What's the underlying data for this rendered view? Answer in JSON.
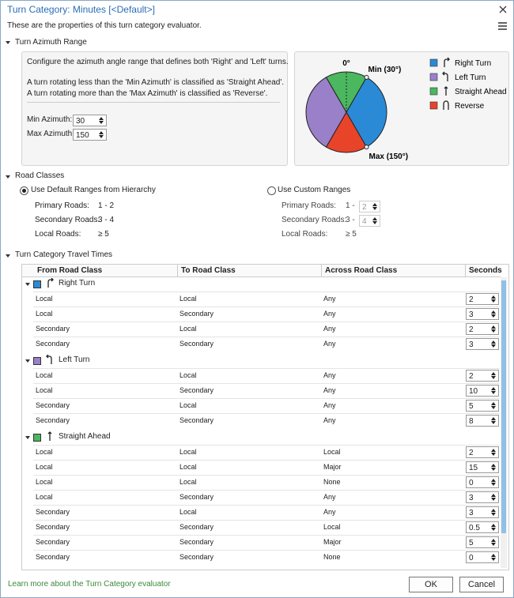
{
  "dialog": {
    "title": "Turn Category: Minutes [<Default>]",
    "description": "These are the properties of this turn category evaluator."
  },
  "azimuth": {
    "heading": "Turn Azimuth Range",
    "lines": [
      "Configure the azimuth angle range that defines both 'Right' and 'Left' turns.",
      "A turn rotating less than the 'Min Azimuth' is classified as 'Straight Ahead'.",
      "A turn rotating more than the 'Max Azimuth' is classified as 'Reverse'."
    ],
    "min_label": "Min Azimuth:",
    "min_value": 30,
    "max_label": "Max Azimuth:",
    "max_value": 150,
    "zero_label": "0°",
    "min_marker": "Min (30°)",
    "max_marker": "Max (150°)",
    "legend": [
      {
        "name": "Right Turn",
        "color": "#2b8ad6"
      },
      {
        "name": "Left Turn",
        "color": "#9a7fc9"
      },
      {
        "name": "Straight Ahead",
        "color": "#4bb75f"
      },
      {
        "name": "Reverse",
        "color": "#e8442a"
      }
    ]
  },
  "road_classes": {
    "heading": "Road Classes",
    "default_option": "Use Default Ranges from Hierarchy",
    "custom_option": "Use Custom Ranges",
    "default_rows": [
      [
        "Primary Roads:",
        "1 - 2"
      ],
      [
        "Secondary Roads:",
        "3 - 4"
      ],
      [
        "Local Roads:",
        "≥ 5"
      ]
    ],
    "custom_rows": [
      [
        "Primary Roads:",
        "1 -",
        2
      ],
      [
        "Secondary Roads:",
        "3 -",
        4
      ],
      [
        "Local Roads:",
        "≥ 5"
      ]
    ]
  },
  "travel_times": {
    "heading": "Turn Category Travel Times",
    "columns": [
      "From Road Class",
      "To Road Class",
      "Across Road Class",
      "Seconds"
    ],
    "groups": [
      {
        "name": "Right Turn",
        "rows": [
          [
            "Local",
            "Local",
            "Any",
            2
          ],
          [
            "Local",
            "Secondary",
            "Any",
            3
          ],
          [
            "Secondary",
            "Local",
            "Any",
            2
          ],
          [
            "Secondary",
            "Secondary",
            "Any",
            3
          ]
        ]
      },
      {
        "name": "Left Turn",
        "rows": [
          [
            "Local",
            "Local",
            "Any",
            2
          ],
          [
            "Local",
            "Secondary",
            "Any",
            10
          ],
          [
            "Secondary",
            "Local",
            "Any",
            5
          ],
          [
            "Secondary",
            "Secondary",
            "Any",
            8
          ]
        ]
      },
      {
        "name": "Straight Ahead",
        "rows": [
          [
            "Local",
            "Local",
            "Local",
            2
          ],
          [
            "Local",
            "Local",
            "Major",
            15
          ],
          [
            "Local",
            "Local",
            "None",
            0
          ],
          [
            "Local",
            "Secondary",
            "Any",
            3
          ],
          [
            "Secondary",
            "Local",
            "Any",
            3
          ],
          [
            "Secondary",
            "Secondary",
            "Local",
            0.5
          ],
          [
            "Secondary",
            "Secondary",
            "Major",
            5
          ],
          [
            "Secondary",
            "Secondary",
            "None",
            0
          ]
        ]
      }
    ]
  },
  "footer": {
    "link": "Learn more about the Turn Category evaluator",
    "ok": "OK",
    "cancel": "Cancel"
  }
}
